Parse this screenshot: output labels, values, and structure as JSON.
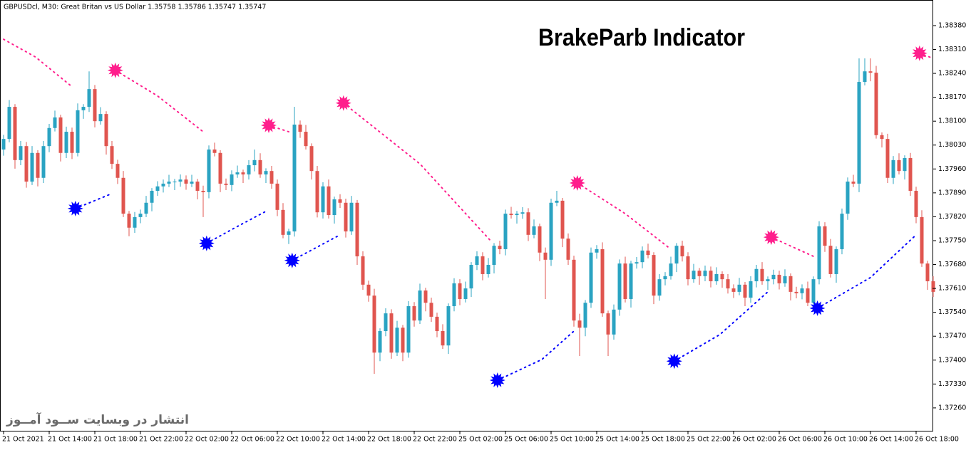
{
  "chart_data": {
    "type": "candlestick",
    "header": "GBPUSDcl, M30:  Great Britan vs US Dollar  1.35758 1.35786 1.35747 1.35747",
    "title": "BrakeParb Indicator",
    "watermark": "انتشار در وبسایت  ســود آمــوز",
    "up_color": "#2aa3c2",
    "down_color": "#e0554f",
    "ylim": [
      1.37193,
      1.38455
    ],
    "yticks": [
      {
        "value": 1.3838,
        "label": "1.38380"
      },
      {
        "value": 1.3831,
        "label": "1.38310"
      },
      {
        "value": 1.3824,
        "label": "1.38240"
      },
      {
        "value": 1.3817,
        "label": "1.38170"
      },
      {
        "value": 1.381,
        "label": "1.38100"
      },
      {
        "value": 1.3803,
        "label": "1.38030"
      },
      {
        "value": 1.3796,
        "label": "1.37960"
      },
      {
        "value": 1.3789,
        "label": "1.37890"
      },
      {
        "value": 1.3782,
        "label": "1.37820"
      },
      {
        "value": 1.3775,
        "label": "1.37750"
      },
      {
        "value": 1.3768,
        "label": "1.37680"
      },
      {
        "value": 1.3761,
        "label": "1.37610"
      },
      {
        "value": 1.3754,
        "label": "1.37540"
      },
      {
        "value": 1.3747,
        "label": "1.37470"
      },
      {
        "value": 1.374,
        "label": "1.37400"
      },
      {
        "value": 1.3733,
        "label": "1.37330"
      },
      {
        "value": 1.3726,
        "label": "1.37260"
      }
    ],
    "categories": [
      "21 Oct 2021",
      null,
      null,
      null,
      null,
      null,
      null,
      null,
      "21 Oct 14:00",
      null,
      null,
      null,
      null,
      null,
      null,
      null,
      "21 Oct 18:00",
      null,
      null,
      null,
      null,
      null,
      null,
      null,
      "21 Oct 22:00",
      null,
      null,
      null,
      null,
      null,
      null,
      null,
      "22 Oct 02:00",
      null,
      null,
      null,
      null,
      null,
      null,
      null,
      "22 Oct 06:00",
      null,
      null,
      null,
      null,
      null,
      null,
      null,
      "22 Oct 10:00",
      null,
      null,
      null,
      null,
      null,
      null,
      null,
      "22 Oct 14:00",
      null,
      null,
      null,
      null,
      null,
      null,
      null,
      "22 Oct 18:00",
      null,
      null,
      null,
      null,
      null,
      null,
      null,
      "22 Oct 22:00",
      null,
      null,
      null,
      null,
      null,
      null,
      null,
      "25 Oct 02:00",
      null,
      null,
      null,
      null,
      null,
      null,
      null,
      "25 Oct 06:00",
      null,
      null,
      null,
      null,
      null,
      null,
      null,
      "25 Oct 10:00",
      null,
      null,
      null,
      null,
      null,
      null,
      null,
      "25 Oct 14:00",
      null,
      null,
      null,
      null,
      null,
      null,
      null,
      "25 Oct 18:00",
      null,
      null,
      null,
      null,
      null,
      null,
      null,
      "25 Oct 22:00",
      null,
      null,
      null,
      null,
      null,
      null,
      null,
      "26 Oct 02:00",
      null,
      null,
      null,
      null,
      null,
      null,
      null,
      "26 Oct 06:00",
      null,
      null,
      null,
      null,
      null,
      null,
      null,
      "26 Oct 10:00",
      null,
      null,
      null,
      null,
      null,
      null,
      null,
      "26 Oct 14:00",
      null,
      null,
      null,
      null,
      null,
      null,
      null,
      "26 Oct 18:00",
      null,
      null,
      null
    ],
    "open": [
      1.38017,
      1.38048,
      1.38142,
      1.37986,
      1.38027,
      1.37923,
      1.38007,
      1.37934,
      1.38027,
      1.3808,
      1.38111,
      1.38007,
      1.38069,
      1.38007,
      1.38132,
      1.38142,
      1.38194,
      1.381,
      1.38121,
      1.38027,
      1.37975,
      1.37934,
      1.37829,
      1.37788,
      1.37819,
      1.37829,
      1.37861,
      1.37896,
      1.37909,
      1.37917,
      1.37923,
      1.37923,
      1.37929,
      1.37917,
      1.37923,
      1.37896,
      1.37892,
      1.38017,
      1.38007,
      1.37917,
      1.37913,
      1.37944,
      1.3795,
      1.37944,
      1.37971,
      1.37986,
      1.37944,
      1.37954,
      1.37917,
      1.3784,
      1.37767,
      1.37777,
      1.3809,
      1.38069,
      1.38027,
      1.37954,
      1.37833,
      1.37909,
      1.37825,
      1.37871,
      1.37861,
      1.37777,
      1.37861,
      1.37704,
      1.37621,
      1.37589,
      1.37422,
      1.37485,
      1.37537,
      1.37422,
      1.37495,
      1.37422,
      1.37558,
      1.37516,
      1.37604,
      1.37568,
      1.37527,
      1.37485,
      1.37443,
      1.37558,
      1.37625,
      1.37579,
      1.3761,
      1.37679,
      1.37704,
      1.37652,
      1.37679,
      1.37735,
      1.37725,
      1.37829,
      1.37825,
      1.37829,
      1.37833,
      1.37767,
      1.37792,
      1.37715,
      1.37694,
      1.37861,
      1.37867,
      1.37756,
      1.37694,
      1.37516,
      1.37495,
      1.37568,
      1.37715,
      1.37725,
      1.37537,
      1.37475,
      1.37548,
      1.37683,
      1.37579,
      1.37683,
      1.37687,
      1.37721,
      1.37708,
      1.37589,
      1.37637,
      1.37646,
      1.37683,
      1.37735,
      1.37704,
      1.37637,
      1.37662,
      1.37646,
      1.37662,
      1.37631,
      1.37652,
      1.37637,
      1.3761,
      1.376,
      1.37621,
      1.37583,
      1.37631,
      1.37667,
      1.37631,
      1.37637,
      1.3765,
      1.37625,
      1.37646,
      1.376,
      1.37596,
      1.3761,
      1.37568,
      1.37637,
      1.37792,
      1.37735,
      1.37652,
      1.37725,
      1.37829,
      1.37923,
      1.37917,
      1.38215,
      1.38246,
      1.38242,
      1.38059,
      1.38048,
      1.37934,
      1.37986,
      1.37954,
      1.37992,
      1.37896,
      1.37819,
      1.37683,
      1.37631
    ],
    "high": [
      1.3806,
      1.38162,
      1.3815,
      1.38042,
      1.38039,
      1.38027,
      1.38015,
      1.38042,
      1.38092,
      1.38131,
      1.38119,
      1.38084,
      1.38081,
      1.38152,
      1.3815,
      1.38246,
      1.38206,
      1.38141,
      1.38129,
      1.38042,
      1.37987,
      1.37954,
      1.37837,
      1.37834,
      1.37841,
      1.37881,
      1.37904,
      1.37924,
      1.37929,
      1.37943,
      1.37931,
      1.37944,
      1.37941,
      1.37943,
      1.37931,
      1.37911,
      1.38029,
      1.38037,
      1.38015,
      1.37932,
      1.37956,
      1.3797,
      1.37958,
      1.37986,
      1.38017,
      1.38006,
      1.37962,
      1.37969,
      1.37929,
      1.3786,
      1.37785,
      1.38142,
      1.38102,
      1.38089,
      1.38035,
      1.37969,
      1.37921,
      1.37929,
      1.37879,
      1.37886,
      1.37873,
      1.37881,
      1.37869,
      1.37719,
      1.37633,
      1.37609,
      1.37493,
      1.37552,
      1.37549,
      1.37515,
      1.37503,
      1.37573,
      1.3757,
      1.37624,
      1.37612,
      1.37583,
      1.37539,
      1.37505,
      1.37566,
      1.3764,
      1.37637,
      1.3763,
      1.37687,
      1.37719,
      1.37716,
      1.37699,
      1.37743,
      1.3775,
      1.37841,
      1.37849,
      1.37837,
      1.37848,
      1.37845,
      1.37812,
      1.378,
      1.3773,
      1.37873,
      1.37896,
      1.37875,
      1.37771,
      1.37706,
      1.37536,
      1.37576,
      1.3773,
      1.37737,
      1.37745,
      1.37545,
      1.37563,
      1.37695,
      1.37703,
      1.37691,
      1.37702,
      1.37733,
      1.37741,
      1.37716,
      1.37652,
      1.37658,
      1.37703,
      1.37743,
      1.3775,
      1.37716,
      1.37682,
      1.3767,
      1.37677,
      1.37674,
      1.37672,
      1.3766,
      1.37652,
      1.37622,
      1.37641,
      1.37629,
      1.37646,
      1.37679,
      1.37687,
      1.37645,
      1.37665,
      1.37662,
      1.37666,
      1.37654,
      1.37615,
      1.37622,
      1.3763,
      1.37645,
      1.37807,
      1.37804,
      1.37755,
      1.37733,
      1.37844,
      1.37935,
      1.37943,
      1.38284,
      1.38284,
      1.38284,
      1.38262,
      1.38067,
      1.38063,
      1.37998,
      1.38006,
      1.38,
      1.38007,
      1.37908,
      1.37839,
      1.37691,
      1.37646
    ],
    "low": [
      1.37999,
      1.38038,
      1.37961,
      1.37971,
      1.37905,
      1.37913,
      1.37909,
      1.37919,
      1.38009,
      1.3807,
      1.37982,
      1.37992,
      1.37989,
      1.37997,
      1.38107,
      1.38127,
      1.38082,
      1.3809,
      1.38002,
      1.3796,
      1.37916,
      1.37819,
      1.37763,
      1.37773,
      1.37801,
      1.37819,
      1.37836,
      1.37881,
      1.37891,
      1.37907,
      1.37898,
      1.37908,
      1.37899,
      1.37907,
      1.37871,
      1.37819,
      1.37874,
      1.37997,
      1.37892,
      1.37898,
      1.37895,
      1.37934,
      1.37919,
      1.37929,
      1.37953,
      1.37934,
      1.37919,
      1.37902,
      1.37822,
      1.37757,
      1.3774,
      1.37762,
      1.38051,
      1.38017,
      1.37929,
      1.37818,
      1.37815,
      1.37815,
      1.378,
      1.37846,
      1.37759,
      1.37767,
      1.37679,
      1.37606,
      1.37571,
      1.3736,
      1.37397,
      1.3747,
      1.37404,
      1.37412,
      1.37397,
      1.37407,
      1.37498,
      1.37506,
      1.37543,
      1.37512,
      1.37467,
      1.37433,
      1.37418,
      1.37543,
      1.37561,
      1.37569,
      1.37585,
      1.37664,
      1.37634,
      1.37642,
      1.37654,
      1.3771,
      1.37707,
      1.37815,
      1.378,
      1.37814,
      1.37749,
      1.37757,
      1.3769,
      1.37579,
      1.37676,
      1.37851,
      1.37731,
      1.37679,
      1.37498,
      1.37412,
      1.3747,
      1.37553,
      1.37697,
      1.37527,
      1.37412,
      1.3746,
      1.3753,
      1.37569,
      1.37554,
      1.37668,
      1.37669,
      1.37698,
      1.37564,
      1.37574,
      1.37619,
      1.37636,
      1.37658,
      1.37689,
      1.37619,
      1.37627,
      1.37621,
      1.37631,
      1.37613,
      1.37621,
      1.37612,
      1.37595,
      1.37582,
      1.3759,
      1.37558,
      1.37568,
      1.37613,
      1.37621,
      1.37606,
      1.37622,
      1.37607,
      1.37615,
      1.37575,
      1.37581,
      1.37578,
      1.37558,
      1.37543,
      1.37622,
      1.37717,
      1.37642,
      1.37627,
      1.3771,
      1.37811,
      1.37907,
      1.37892,
      1.38205,
      1.38217,
      1.38049,
      1.38023,
      1.37919,
      1.37916,
      1.37944,
      1.37929,
      1.37881,
      1.37801,
      1.37673,
      1.37606,
      1.37585
    ],
    "close": [
      1.38048,
      1.38142,
      1.37986,
      1.38027,
      1.37923,
      1.38007,
      1.37934,
      1.38027,
      1.3808,
      1.38111,
      1.38007,
      1.38069,
      1.38007,
      1.38132,
      1.38142,
      1.38194,
      1.381,
      1.38121,
      1.38027,
      1.37975,
      1.37934,
      1.37829,
      1.37788,
      1.37819,
      1.37829,
      1.37861,
      1.37896,
      1.37909,
      1.37917,
      1.37923,
      1.37923,
      1.37929,
      1.37917,
      1.37923,
      1.37896,
      1.37892,
      1.38017,
      1.38007,
      1.37917,
      1.37913,
      1.37944,
      1.3795,
      1.37944,
      1.37971,
      1.37986,
      1.37944,
      1.37954,
      1.37917,
      1.3784,
      1.37767,
      1.37777,
      1.3809,
      1.38069,
      1.38027,
      1.37954,
      1.37833,
      1.37909,
      1.37825,
      1.37871,
      1.37861,
      1.37777,
      1.37861,
      1.37704,
      1.37621,
      1.37589,
      1.37422,
      1.37485,
      1.37537,
      1.37422,
      1.37495,
      1.37422,
      1.37558,
      1.37516,
      1.37604,
      1.37568,
      1.37527,
      1.37485,
      1.37443,
      1.37558,
      1.37625,
      1.37579,
      1.3761,
      1.37679,
      1.37704,
      1.37652,
      1.37679,
      1.37735,
      1.37725,
      1.37829,
      1.37825,
      1.37829,
      1.37833,
      1.37767,
      1.37792,
      1.37715,
      1.37694,
      1.37861,
      1.37867,
      1.37756,
      1.37694,
      1.37516,
      1.37495,
      1.37568,
      1.37715,
      1.37725,
      1.37537,
      1.37475,
      1.37548,
      1.37683,
      1.37579,
      1.37683,
      1.37687,
      1.37721,
      1.37708,
      1.37589,
      1.37637,
      1.37646,
      1.37683,
      1.37735,
      1.37704,
      1.37637,
      1.37662,
      1.37646,
      1.37662,
      1.37631,
      1.37652,
      1.37637,
      1.3761,
      1.376,
      1.37621,
      1.37583,
      1.37631,
      1.37667,
      1.37631,
      1.37637,
      1.3765,
      1.37625,
      1.37646,
      1.376,
      1.37596,
      1.3761,
      1.37568,
      1.37637,
      1.37792,
      1.37735,
      1.37652,
      1.37725,
      1.37829,
      1.37923,
      1.37917,
      1.38215,
      1.38246,
      1.38242,
      1.38059,
      1.38048,
      1.37934,
      1.37986,
      1.37954,
      1.37992,
      1.37896,
      1.37819,
      1.37683,
      1.37631,
      1.376
    ],
    "overlays": [
      {
        "color": "#ff1e8c",
        "star": false,
        "x": [
          0,
          5.6,
          12
        ],
        "values": [
          1.3834,
          1.38288,
          1.38201
        ]
      },
      {
        "color": "#ff1e8c",
        "star": true,
        "x": [
          19.6,
          27,
          35
        ],
        "values": [
          1.38249,
          1.38174,
          1.38069
        ]
      },
      {
        "color": "#ff1e8c",
        "star": true,
        "x": [
          46.5,
          50
        ],
        "values": [
          1.38088,
          1.38069
        ]
      },
      {
        "color": "#ff1e8c",
        "star": true,
        "x": [
          59.6,
          73,
          85.6
        ],
        "values": [
          1.38153,
          1.37975,
          1.37746
        ]
      },
      {
        "color": "#ff1e8c",
        "star": true,
        "x": [
          100.6,
          109,
          117
        ],
        "values": [
          1.37919,
          1.37829,
          1.37725
        ]
      },
      {
        "color": "#ff1e8c",
        "star": true,
        "x": [
          134.6,
          142
        ],
        "values": [
          1.3776,
          1.37704
        ]
      },
      {
        "color": "#ff1e8c",
        "star": true,
        "x": [
          160.6,
          163
        ],
        "values": [
          1.38299,
          1.38284
        ]
      },
      {
        "color": "#0000ff",
        "star": true,
        "x": [
          12.6,
          19
        ],
        "values": [
          1.37844,
          1.37888
        ]
      },
      {
        "color": "#0000ff",
        "star": true,
        "x": [
          35.6,
          40.6,
          46
        ],
        "values": [
          1.37742,
          1.37788,
          1.37836
        ]
      },
      {
        "color": "#0000ff",
        "star": true,
        "x": [
          50.6,
          59
        ],
        "values": [
          1.37692,
          1.37767
        ]
      },
      {
        "color": "#0000ff",
        "star": true,
        "x": [
          86.6,
          94.4,
          100
        ],
        "values": [
          1.37341,
          1.37402,
          1.37485
        ]
      },
      {
        "color": "#0000ff",
        "star": true,
        "x": [
          117.6,
          125.6,
          134
        ],
        "values": [
          1.37397,
          1.37475,
          1.376
        ]
      },
      {
        "color": "#0000ff",
        "star": true,
        "x": [
          142.7,
          152,
          160
        ],
        "values": [
          1.37552,
          1.37642,
          1.37767
        ]
      }
    ]
  }
}
